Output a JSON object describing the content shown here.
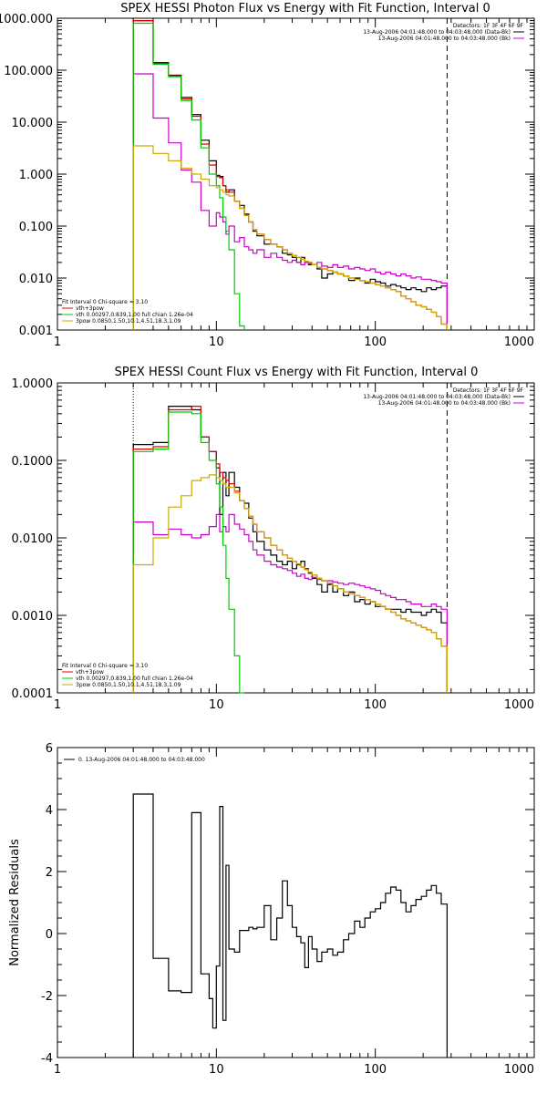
{
  "chart_data": [
    {
      "type": "line",
      "title": "SPEX HESSI Photon Flux vs Energy with Fit Function, Interval 0",
      "xscale": "log",
      "yscale": "log",
      "xlim": [
        1,
        1000
      ],
      "ylim": [
        0.001,
        1000
      ],
      "x_tick_labels": [
        "1",
        "10",
        "100",
        "1000"
      ],
      "y_tick_labels": [
        "0.001",
        "0.010",
        "0.100",
        "1.000",
        "10.000",
        "100.000",
        "1000.000"
      ],
      "legend_top_right": {
        "detectors": "Detectors: 1F 3F 4F 6F 9F",
        "lines": [
          {
            "text": "13-Aug-2006 04:01:48.000 to 04:03:48.000 (Data-Bk)",
            "color": "#000000"
          },
          {
            "text": "13-Aug-2006 04:01:48.000 to 04:03:48.000 (Bk)",
            "color": "#cc00cc"
          }
        ]
      },
      "legend_bottom_left": {
        "header": "Fit Interval 0   Chi-square = 3.10",
        "lines": [
          {
            "text": "vth+3pow",
            "color": "#dd0000"
          },
          {
            "text": "vth 0.00297,0.839,1.00  full chian 1.26e-04",
            "color": "#00cc00"
          },
          {
            "text": "3pow 0.0850,1.50,10.1,4.51,18.3,1.09",
            "color": "#ccaa00"
          }
        ]
      },
      "vlines": [
        {
          "x": 3,
          "style": "dotted",
          "color": "#000000"
        },
        {
          "x": 283,
          "style": "dashed",
          "color": "#000000"
        }
      ],
      "edges": [
        3,
        3.5,
        4,
        4.5,
        5,
        5.5,
        6,
        6.5,
        7,
        7.5,
        8,
        8.5,
        9,
        9.5,
        10,
        10.5,
        11,
        11.5,
        12,
        13,
        14,
        15,
        16,
        17,
        18,
        20,
        22,
        24,
        26,
        28,
        30,
        32,
        34,
        36,
        38,
        40,
        43,
        46,
        50,
        54,
        58,
        63,
        68,
        74,
        80,
        86,
        93,
        100,
        108,
        116,
        125,
        135,
        145,
        156,
        168,
        180,
        195,
        210,
        225,
        242,
        260,
        283
      ],
      "series": [
        {
          "color": "#000000",
          "values": [
            900,
            900,
            140,
            140,
            80,
            80,
            30,
            30,
            14,
            14,
            4.5,
            4.5,
            1.8,
            1.8,
            0.95,
            0.9,
            0.6,
            0.45,
            0.5,
            0.3,
            0.25,
            0.17,
            0.12,
            0.08,
            0.065,
            0.045,
            0.045,
            0.04,
            0.03,
            0.028,
            0.025,
            0.02,
            0.025,
            0.02,
            0.018,
            0.018,
            0.015,
            0.01,
            0.012,
            0.013,
            0.012,
            0.011,
            0.009,
            0.01,
            0.009,
            0.008,
            0.0095,
            0.0085,
            0.008,
            0.007,
            0.0075,
            0.007,
            0.0065,
            0.006,
            0.0065,
            0.006,
            0.0055,
            0.0065,
            0.006,
            0.0065,
            0.007
          ]
        },
        {
          "color": "#cc00cc",
          "values": [
            85,
            85,
            12,
            12,
            4,
            4,
            1.2,
            1.2,
            0.7,
            0.7,
            0.2,
            0.2,
            0.1,
            0.1,
            0.18,
            0.15,
            0.12,
            0.07,
            0.1,
            0.05,
            0.06,
            0.04,
            0.035,
            0.03,
            0.035,
            0.025,
            0.03,
            0.025,
            0.022,
            0.02,
            0.022,
            0.02,
            0.018,
            0.02,
            0.019,
            0.018,
            0.02,
            0.017,
            0.016,
            0.018,
            0.016,
            0.017,
            0.015,
            0.016,
            0.015,
            0.014,
            0.015,
            0.013,
            0.012,
            0.013,
            0.012,
            0.011,
            0.012,
            0.011,
            0.01,
            0.0105,
            0.0095,
            0.0095,
            0.009,
            0.0085,
            0.008
          ]
        },
        {
          "color": "#dd0000",
          "values": [
            900,
            900,
            135,
            135,
            78,
            78,
            28,
            28,
            13,
            13,
            3.8,
            3.8,
            1.5,
            1.5,
            0.9,
            0.85,
            0.6,
            0.5,
            0.45,
            0.3,
            0.22,
            0.16,
            0.12,
            0.085,
            0.07,
            0.055,
            0.045,
            0.04,
            0.035,
            0.03,
            0.027,
            0.025,
            0.023,
            0.021,
            0.02,
            0.018,
            0.016,
            0.015,
            0.014,
            0.013,
            0.012,
            0.011,
            0.01,
            0.0095,
            0.009,
            0.0085,
            0.008,
            0.0075,
            0.007,
            0.0065,
            0.006,
            0.0055,
            0.0045,
            0.004,
            0.0035,
            0.003,
            0.0028,
            0.0025,
            0.0022,
            0.0018,
            0.0013
          ]
        },
        {
          "color": "#00cc00",
          "values": [
            800,
            800,
            130,
            130,
            75,
            75,
            26,
            26,
            11,
            11,
            3.2,
            3.2,
            1,
            1,
            0.6,
            0.35,
            0.15,
            0.08,
            0.035,
            0.005,
            0.0012
          ]
        },
        {
          "color": "#ccaa00",
          "values": [
            3.5,
            3.5,
            2.5,
            2.5,
            1.8,
            1.8,
            1.3,
            1.3,
            1,
            1,
            0.8,
            0.8,
            0.6,
            0.6,
            0.55,
            0.5,
            0.45,
            0.4,
            0.38,
            0.3,
            0.22,
            0.16,
            0.12,
            0.085,
            0.07,
            0.055,
            0.045,
            0.04,
            0.035,
            0.03,
            0.027,
            0.025,
            0.023,
            0.021,
            0.02,
            0.018,
            0.016,
            0.015,
            0.014,
            0.013,
            0.012,
            0.011,
            0.01,
            0.0095,
            0.009,
            0.0085,
            0.008,
            0.0075,
            0.007,
            0.0065,
            0.006,
            0.0055,
            0.0045,
            0.004,
            0.0035,
            0.003,
            0.0028,
            0.0025,
            0.0022,
            0.0018,
            0.0013
          ]
        }
      ]
    },
    {
      "type": "line",
      "title": "SPEX HESSI Count Flux vs Energy with Fit Function, Interval 0",
      "xscale": "log",
      "yscale": "log",
      "xlim": [
        1,
        1000
      ],
      "ylim": [
        0.0001,
        1
      ],
      "x_tick_labels": [
        "1",
        "10",
        "100",
        "1000"
      ],
      "y_tick_labels": [
        "0.0001",
        "0.0010",
        "0.0100",
        "0.1000",
        "1.0000"
      ],
      "legend_top_right": {
        "detectors": "Detectors: 1F 3F 4F 6F 9F",
        "lines": [
          {
            "text": "13-Aug-2006 04:01:48.000 to 04:03:48.000 (Data-Bk)",
            "color": "#000000"
          },
          {
            "text": "13-Aug-2006 04:01:48.000 to 04:03:48.000 (Bk)",
            "color": "#cc00cc"
          }
        ]
      },
      "legend_bottom_left": {
        "header": "Fit Interval 0   Chi-square = 3.10",
        "lines": [
          {
            "text": "vth+3pow",
            "color": "#dd0000"
          },
          {
            "text": "vth 0.00297,0.839,1.00  full chian 1.26e-04",
            "color": "#00cc00"
          },
          {
            "text": "3pow 0.0850,1.50,10.1,4.51,18.3,1.09",
            "color": "#ccaa00"
          }
        ]
      },
      "vlines": [
        {
          "x": 3,
          "style": "dotted",
          "color": "#000000"
        },
        {
          "x": 283,
          "style": "dashed",
          "color": "#000000"
        }
      ],
      "edges": [
        3,
        3.5,
        4,
        4.5,
        5,
        5.5,
        6,
        6.5,
        7,
        7.5,
        8,
        8.5,
        9,
        9.5,
        10,
        10.5,
        11,
        11.5,
        12,
        13,
        14,
        15,
        16,
        17,
        18,
        20,
        22,
        24,
        26,
        28,
        30,
        32,
        34,
        36,
        38,
        40,
        43,
        46,
        50,
        54,
        58,
        63,
        68,
        74,
        80,
        86,
        93,
        100,
        108,
        116,
        125,
        135,
        145,
        156,
        168,
        180,
        195,
        210,
        225,
        242,
        260,
        283
      ],
      "series": [
        {
          "color": "#000000",
          "values": [
            0.16,
            0.16,
            0.17,
            0.17,
            0.5,
            0.5,
            0.5,
            0.5,
            0.45,
            0.45,
            0.2,
            0.2,
            0.13,
            0.13,
            0.08,
            0.02,
            0.07,
            0.035,
            0.07,
            0.045,
            0.03,
            0.028,
            0.018,
            0.012,
            0.009,
            0.007,
            0.006,
            0.005,
            0.0045,
            0.005,
            0.004,
            0.0045,
            0.005,
            0.004,
            0.0035,
            0.003,
            0.0025,
            0.002,
            0.0025,
            0.002,
            0.0022,
            0.0018,
            0.002,
            0.0015,
            0.0016,
            0.0014,
            0.0015,
            0.0013,
            0.0013,
            0.0012,
            0.0012,
            0.0012,
            0.0011,
            0.0012,
            0.0011,
            0.0011,
            0.001,
            0.0011,
            0.0012,
            0.0011,
            0.0008
          ]
        },
        {
          "color": "#cc00cc",
          "values": [
            0.016,
            0.016,
            0.011,
            0.011,
            0.013,
            0.013,
            0.011,
            0.011,
            0.01,
            0.01,
            0.011,
            0.011,
            0.014,
            0.014,
            0.02,
            0.012,
            0.014,
            0.012,
            0.02,
            0.015,
            0.013,
            0.011,
            0.009,
            0.007,
            0.006,
            0.005,
            0.0045,
            0.0042,
            0.004,
            0.0038,
            0.0035,
            0.0032,
            0.0034,
            0.003,
            0.0029,
            0.0031,
            0.0029,
            0.0028,
            0.0028,
            0.0027,
            0.0026,
            0.0025,
            0.0026,
            0.0025,
            0.0024,
            0.0023,
            0.0022,
            0.0021,
            0.0019,
            0.0018,
            0.0017,
            0.0016,
            0.0016,
            0.0015,
            0.0014,
            0.0014,
            0.0013,
            0.0013,
            0.0014,
            0.0013,
            0.0012
          ]
        },
        {
          "color": "#dd0000",
          "values": [
            0.14,
            0.14,
            0.15,
            0.15,
            0.45,
            0.45,
            0.45,
            0.45,
            0.5,
            0.5,
            0.2,
            0.2,
            0.13,
            0.13,
            0.09,
            0.07,
            0.06,
            0.055,
            0.05,
            0.04,
            0.03,
            0.024,
            0.019,
            0.015,
            0.012,
            0.01,
            0.008,
            0.007,
            0.006,
            0.0055,
            0.005,
            0.0046,
            0.0042,
            0.0039,
            0.0036,
            0.0033,
            0.003,
            0.0028,
            0.0026,
            0.0024,
            0.0022,
            0.002,
            0.0019,
            0.0018,
            0.0017,
            0.0016,
            0.0015,
            0.0014,
            0.0013,
            0.0012,
            0.0011,
            0.001,
            0.0009,
            0.00085,
            0.0008,
            0.00075,
            0.0007,
            0.00065,
            0.0006,
            0.0005,
            0.0004
          ]
        },
        {
          "color": "#00cc00",
          "values": [
            0.13,
            0.13,
            0.14,
            0.14,
            0.42,
            0.42,
            0.42,
            0.42,
            0.4,
            0.4,
            0.17,
            0.17,
            0.1,
            0.1,
            0.05,
            0.025,
            0.008,
            0.003,
            0.0012,
            0.0003,
            8e-05
          ]
        },
        {
          "color": "#ccaa00",
          "values": [
            0.0045,
            0.0045,
            0.01,
            0.01,
            0.025,
            0.025,
            0.035,
            0.035,
            0.055,
            0.055,
            0.06,
            0.06,
            0.065,
            0.065,
            0.06,
            0.055,
            0.05,
            0.045,
            0.045,
            0.038,
            0.03,
            0.024,
            0.019,
            0.015,
            0.012,
            0.01,
            0.008,
            0.007,
            0.006,
            0.0055,
            0.005,
            0.0046,
            0.0042,
            0.0039,
            0.0036,
            0.0033,
            0.003,
            0.0028,
            0.0026,
            0.0024,
            0.0022,
            0.002,
            0.0019,
            0.0018,
            0.0017,
            0.0016,
            0.0015,
            0.0014,
            0.0013,
            0.0012,
            0.0011,
            0.001,
            0.0009,
            0.00085,
            0.0008,
            0.00075,
            0.0007,
            0.00065,
            0.0006,
            0.0005,
            0.0004
          ]
        }
      ]
    },
    {
      "type": "line",
      "title": "",
      "ylabel": "Normalized Residuals",
      "xscale": "log",
      "yscale": "linear",
      "xlim": [
        1,
        1000
      ],
      "ylim": [
        -4,
        6
      ],
      "x_tick_labels": [
        "1",
        "10",
        "100",
        "1000"
      ],
      "y_tick_labels": [
        "-4",
        "-2",
        "0",
        "2",
        "4",
        "6"
      ],
      "legend_top_left": {
        "lines": [
          {
            "text": "0. 13-Aug-2006 04:01:48.000 to 04:03:48.000",
            "color": "#000000"
          }
        ]
      },
      "edges": [
        3,
        3.5,
        4,
        4.5,
        5,
        5.5,
        6,
        6.5,
        7,
        7.5,
        8,
        8.5,
        9,
        9.5,
        10,
        10.5,
        11,
        11.5,
        12,
        13,
        14,
        15,
        16,
        17,
        18,
        20,
        22,
        24,
        26,
        28,
        30,
        32,
        34,
        36,
        38,
        40,
        43,
        46,
        50,
        54,
        58,
        63,
        68,
        74,
        80,
        86,
        93,
        100,
        108,
        116,
        125,
        135,
        145,
        156,
        168,
        180,
        195,
        210,
        225,
        242,
        260,
        283
      ],
      "series": [
        {
          "color": "#000000",
          "values": [
            4.5,
            4.5,
            -0.8,
            -0.8,
            -1.85,
            -1.85,
            -1.9,
            -1.9,
            3.9,
            3.9,
            -1.3,
            -1.3,
            -2.1,
            -3.05,
            -1.05,
            4.1,
            -2.8,
            2.2,
            -0.5,
            -0.6,
            0.1,
            0.1,
            0.2,
            0.15,
            0.2,
            0.9,
            -0.2,
            0.5,
            1.7,
            0.9,
            0.2,
            -0.1,
            -0.3,
            -1.1,
            -0.1,
            -0.5,
            -0.9,
            -0.6,
            -0.5,
            -0.7,
            -0.6,
            -0.2,
            0.0,
            0.4,
            0.2,
            0.5,
            0.7,
            0.8,
            1.0,
            1.3,
            1.5,
            1.4,
            1.0,
            0.7,
            0.9,
            1.1,
            1.2,
            1.4,
            1.55,
            1.3,
            0.95
          ]
        }
      ]
    }
  ]
}
